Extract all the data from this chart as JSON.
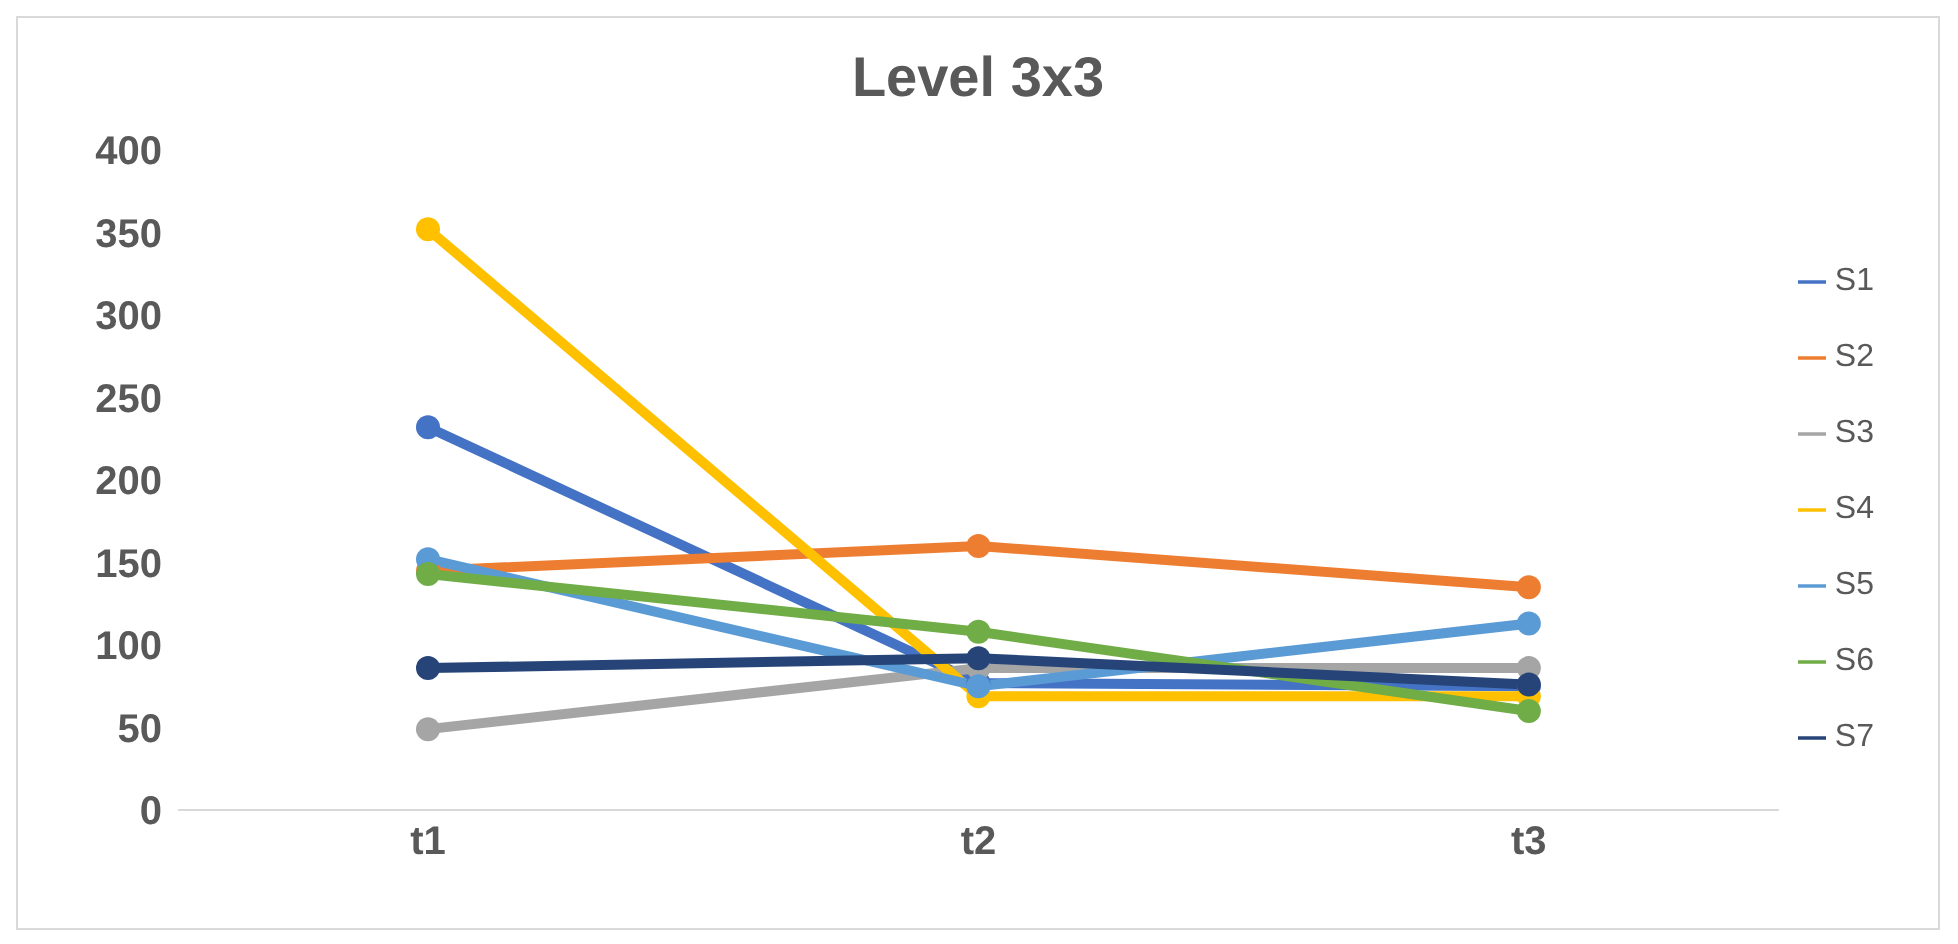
{
  "chart_data": {
    "type": "line",
    "title": "Level 3x3",
    "categories": [
      "t1",
      "t2",
      "t3"
    ],
    "series": [
      {
        "name": "S1",
        "color": "#4472c4",
        "values": [
          232,
          77,
          75
        ]
      },
      {
        "name": "S2",
        "color": "#ed7d31",
        "values": [
          145,
          160,
          135
        ]
      },
      {
        "name": "S3",
        "color": "#a5a5a5",
        "values": [
          49,
          86,
          86
        ]
      },
      {
        "name": "S4",
        "color": "#ffc000",
        "values": [
          352,
          69,
          69
        ]
      },
      {
        "name": "S5",
        "color": "#5b9bd5",
        "values": [
          152,
          75,
          113
        ]
      },
      {
        "name": "S6",
        "color": "#70ad47",
        "values": [
          143,
          108,
          60
        ]
      },
      {
        "name": "S7",
        "color": "#264478",
        "values": [
          86,
          92,
          76
        ]
      }
    ],
    "ylim": [
      0,
      400
    ],
    "yticks": [
      0,
      50,
      100,
      150,
      200,
      250,
      300,
      350,
      400
    ],
    "grid": false,
    "legend": "right",
    "marker": "circle",
    "line_style": "solid"
  }
}
